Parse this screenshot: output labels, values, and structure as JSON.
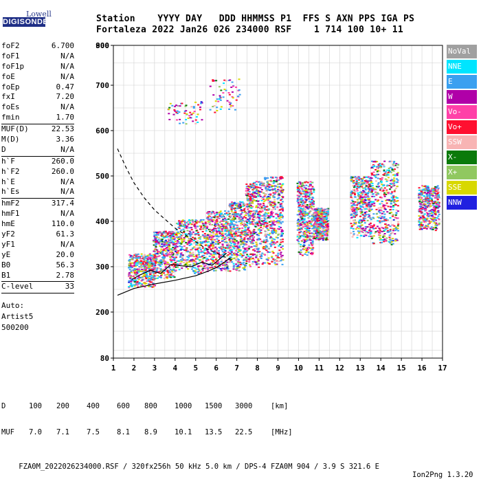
{
  "logo": {
    "brand": "Lowell",
    "name": "DIGISONDE"
  },
  "header": {
    "line1": "Station    YYYY DAY   DDD HHMMSS P1  FFS S AXN PPS IGA PS",
    "line2": "Fortaleza 2022 Jan26 026 234000 RSF    1 714 100 10+ 11"
  },
  "params": [
    {
      "label": "foF2",
      "value": "6.700"
    },
    {
      "label": "foF1",
      "value": "N/A"
    },
    {
      "label": "foF1p",
      "value": "N/A"
    },
    {
      "label": "foE",
      "value": "N/A"
    },
    {
      "label": "foEp",
      "value": "0.47"
    },
    {
      "label": "fxI",
      "value": "7.20"
    },
    {
      "label": "foEs",
      "value": "N/A"
    },
    {
      "label": "fmin",
      "value": "1.70"
    },
    {
      "label": "MUF(D)",
      "value": "22.53",
      "sep": true
    },
    {
      "label": "M(D)",
      "value": "3.36"
    },
    {
      "label": "D",
      "value": "N/A"
    },
    {
      "label": "h`F",
      "value": "260.0",
      "sep": true
    },
    {
      "label": "h`F2",
      "value": "260.0"
    },
    {
      "label": "h`E",
      "value": "N/A"
    },
    {
      "label": "h`Es",
      "value": "N/A"
    },
    {
      "label": "hmF2",
      "value": "317.4",
      "sep": true
    },
    {
      "label": "hmF1",
      "value": "N/A"
    },
    {
      "label": "hmE",
      "value": "110.0"
    },
    {
      "label": "yF2",
      "value": "61.3"
    },
    {
      "label": "yF1",
      "value": "N/A"
    },
    {
      "label": "yE",
      "value": "20.0"
    },
    {
      "label": "B0",
      "value": "56.3"
    },
    {
      "label": "B1",
      "value": "2.78"
    },
    {
      "label": "C-level",
      "value": "33",
      "sep": true
    }
  ],
  "auto": {
    "title": "Auto:",
    "software": "Artist5",
    "version": "500200"
  },
  "legend": [
    {
      "label": "NoVal",
      "color": "#a0a0a0"
    },
    {
      "label": "NNE",
      "color": "#00e5ff"
    },
    {
      "label": "E",
      "color": "#3aa0f0"
    },
    {
      "label": "W",
      "color": "#b000a8"
    },
    {
      "label": "Vo-",
      "color": "#ff40a8"
    },
    {
      "label": "Vo+",
      "color": "#ff1030"
    },
    {
      "label": "SSW",
      "color": "#f8b4b4"
    },
    {
      "label": "X-",
      "color": "#0a7a0a"
    },
    {
      "label": "X+",
      "color": "#90c860"
    },
    {
      "label": "SSE",
      "color": "#d8d800"
    },
    {
      "label": "NNW",
      "color": "#2020e0"
    }
  ],
  "chart_data": {
    "type": "scatter",
    "title": "",
    "xlabel": "",
    "ylabel": "",
    "xlim": [
      1,
      17
    ],
    "ylim": [
      80,
      900
    ],
    "xticks": [
      1,
      2,
      3,
      4,
      5,
      6,
      7,
      8,
      9,
      10,
      11,
      12,
      13,
      14,
      15,
      16,
      17
    ],
    "yticks": [
      80,
      200,
      300,
      400,
      500,
      600,
      700,
      800,
      900
    ],
    "traces": [
      {
        "name": "virtual height trace",
        "style": "solid",
        "points": [
          [
            1.9,
            272
          ],
          [
            2.3,
            282
          ],
          [
            2.8,
            292
          ],
          [
            3.3,
            285
          ],
          [
            3.8,
            305
          ],
          [
            4.3,
            302
          ],
          [
            4.8,
            300
          ],
          [
            5.3,
            310
          ],
          [
            5.8,
            303
          ],
          [
            6.2,
            318
          ],
          [
            6.5,
            330
          ]
        ]
      },
      {
        "name": "profile lower",
        "style": "solid",
        "points": [
          [
            1.2,
            237
          ],
          [
            2.0,
            252
          ],
          [
            3.0,
            262
          ],
          [
            4.0,
            270
          ],
          [
            5.0,
            280
          ],
          [
            5.6,
            290
          ],
          [
            6.0,
            298
          ],
          [
            6.4,
            310
          ],
          [
            6.7,
            320
          ]
        ]
      },
      {
        "name": "profile upper",
        "style": "dashed",
        "points": [
          [
            1.2,
            560
          ],
          [
            1.6,
            520
          ],
          [
            2.0,
            485
          ],
          [
            2.5,
            452
          ],
          [
            3.0,
            425
          ],
          [
            3.5,
            405
          ],
          [
            4.0,
            385
          ],
          [
            4.5,
            370
          ],
          [
            5.0,
            355
          ],
          [
            5.5,
            340
          ],
          [
            6.0,
            330
          ],
          [
            6.5,
            320
          ],
          [
            6.7,
            317
          ]
        ]
      }
    ],
    "echo_clusters": [
      {
        "x": [
          1.7,
          3.0
        ],
        "y": [
          255,
          330
        ]
      },
      {
        "x": [
          2.9,
          4.0
        ],
        "y": [
          275,
          380
        ]
      },
      {
        "x": [
          4.0,
          5.5
        ],
        "y": [
          285,
          405
        ]
      },
      {
        "x": [
          5.5,
          6.6
        ],
        "y": [
          290,
          425
        ]
      },
      {
        "x": [
          6.6,
          7.4
        ],
        "y": [
          290,
          445
        ]
      },
      {
        "x": [
          7.4,
          8.3
        ],
        "y": [
          300,
          490
        ]
      },
      {
        "x": [
          8.3,
          9.2
        ],
        "y": [
          305,
          500
        ]
      },
      {
        "x": [
          9.9,
          10.7
        ],
        "y": [
          325,
          490
        ]
      },
      {
        "x": [
          10.7,
          11.4
        ],
        "y": [
          360,
          430
        ]
      },
      {
        "x": [
          12.5,
          13.5
        ],
        "y": [
          365,
          500
        ]
      },
      {
        "x": [
          13.5,
          14.8
        ],
        "y": [
          350,
          535
        ]
      },
      {
        "x": [
          15.8,
          16.8
        ],
        "y": [
          380,
          480
        ]
      },
      {
        "x": [
          3.6,
          5.3
        ],
        "y": [
          615,
          665
        ]
      },
      {
        "x": [
          5.6,
          7.1
        ],
        "y": [
          640,
          715
        ]
      }
    ]
  },
  "footer": {
    "d_label": "D",
    "d_values": [
      "100",
      "200",
      "400",
      "600",
      "800",
      "1000",
      "1500",
      "3000",
      "[km]"
    ],
    "muf_label": "MUF",
    "muf_values": [
      "7.0",
      "7.1",
      "7.5",
      "8.1",
      "8.9",
      "10.1",
      "13.5",
      "22.5",
      "[MHz]"
    ],
    "file": "FZA0M_2022026234000.RSF / 320fx256h 50 kHz 5.0 km / DPS-4 FZA0M 904 / 3.9 S 321.6 E",
    "version": "Ion2Png 1.3.20"
  }
}
